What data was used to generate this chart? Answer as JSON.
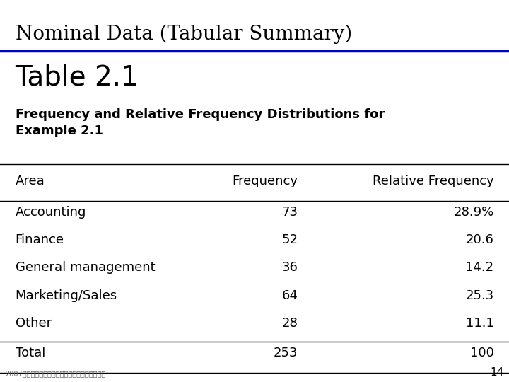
{
  "slide_title": "Nominal Data (Tabular Summary)",
  "table_title": "Table 2.1",
  "table_subtitle": "Frequency and Relative Frequency Distributions for\nExample 2.1",
  "col_headers": [
    "Area",
    "Frequency",
    "Relative Frequency"
  ],
  "rows": [
    [
      "Accounting",
      "73",
      "28.9%"
    ],
    [
      "Finance",
      "52",
      "20.6"
    ],
    [
      "General management",
      "36",
      "14.2"
    ],
    [
      "Marketing/Sales",
      "64",
      "25.3"
    ],
    [
      "Other",
      "28",
      "11.1"
    ]
  ],
  "total_row": [
    "Total",
    "253",
    "100"
  ],
  "bg_color": "#ffffff",
  "slide_title_color": "#000000",
  "header_line_color": "#0000cc",
  "table_line_color": "#000000",
  "footer_text": "2007クリエイティブ・コモンズ（エル）有限会社",
  "page_number": "14",
  "slide_title_fontsize": 20,
  "table_title_fontsize": 28,
  "subtitle_fontsize": 13,
  "header_fontsize": 13,
  "data_fontsize": 13,
  "footer_fontsize": 7
}
